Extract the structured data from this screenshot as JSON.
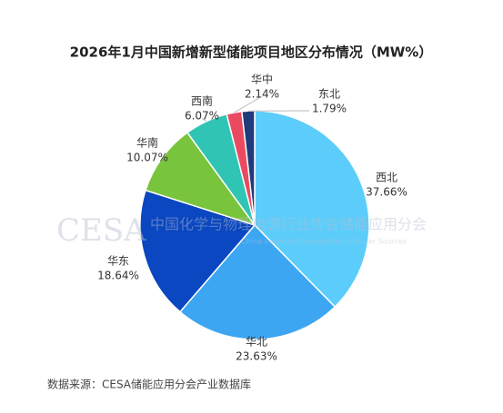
{
  "chart_data": {
    "type": "pie",
    "title": "2026年1月中国新增新型储能项目地区分布情况（MW%）",
    "categories": [
      "西北",
      "华北",
      "华东",
      "华南",
      "西南",
      "华中",
      "东北"
    ],
    "values": [
      37.66,
      23.63,
      18.64,
      10.07,
      6.07,
      2.14,
      1.79
    ],
    "value_labels": [
      "37.66%",
      "23.63%",
      "18.64%",
      "10.07%",
      "6.07%",
      "2.14%",
      "1.79%"
    ],
    "colors": [
      "#5ccdfb",
      "#3da6f2",
      "#0a47c0",
      "#78c43c",
      "#30c4b5",
      "#ea4a60",
      "#1f3b7c"
    ],
    "source": "数据来源：CESA储能应用分会产业数据库",
    "watermark": [
      "CESA",
      "中国化学与物理电源行业协会储能应用分会",
      "China Industrial Association of Power Sources"
    ]
  }
}
